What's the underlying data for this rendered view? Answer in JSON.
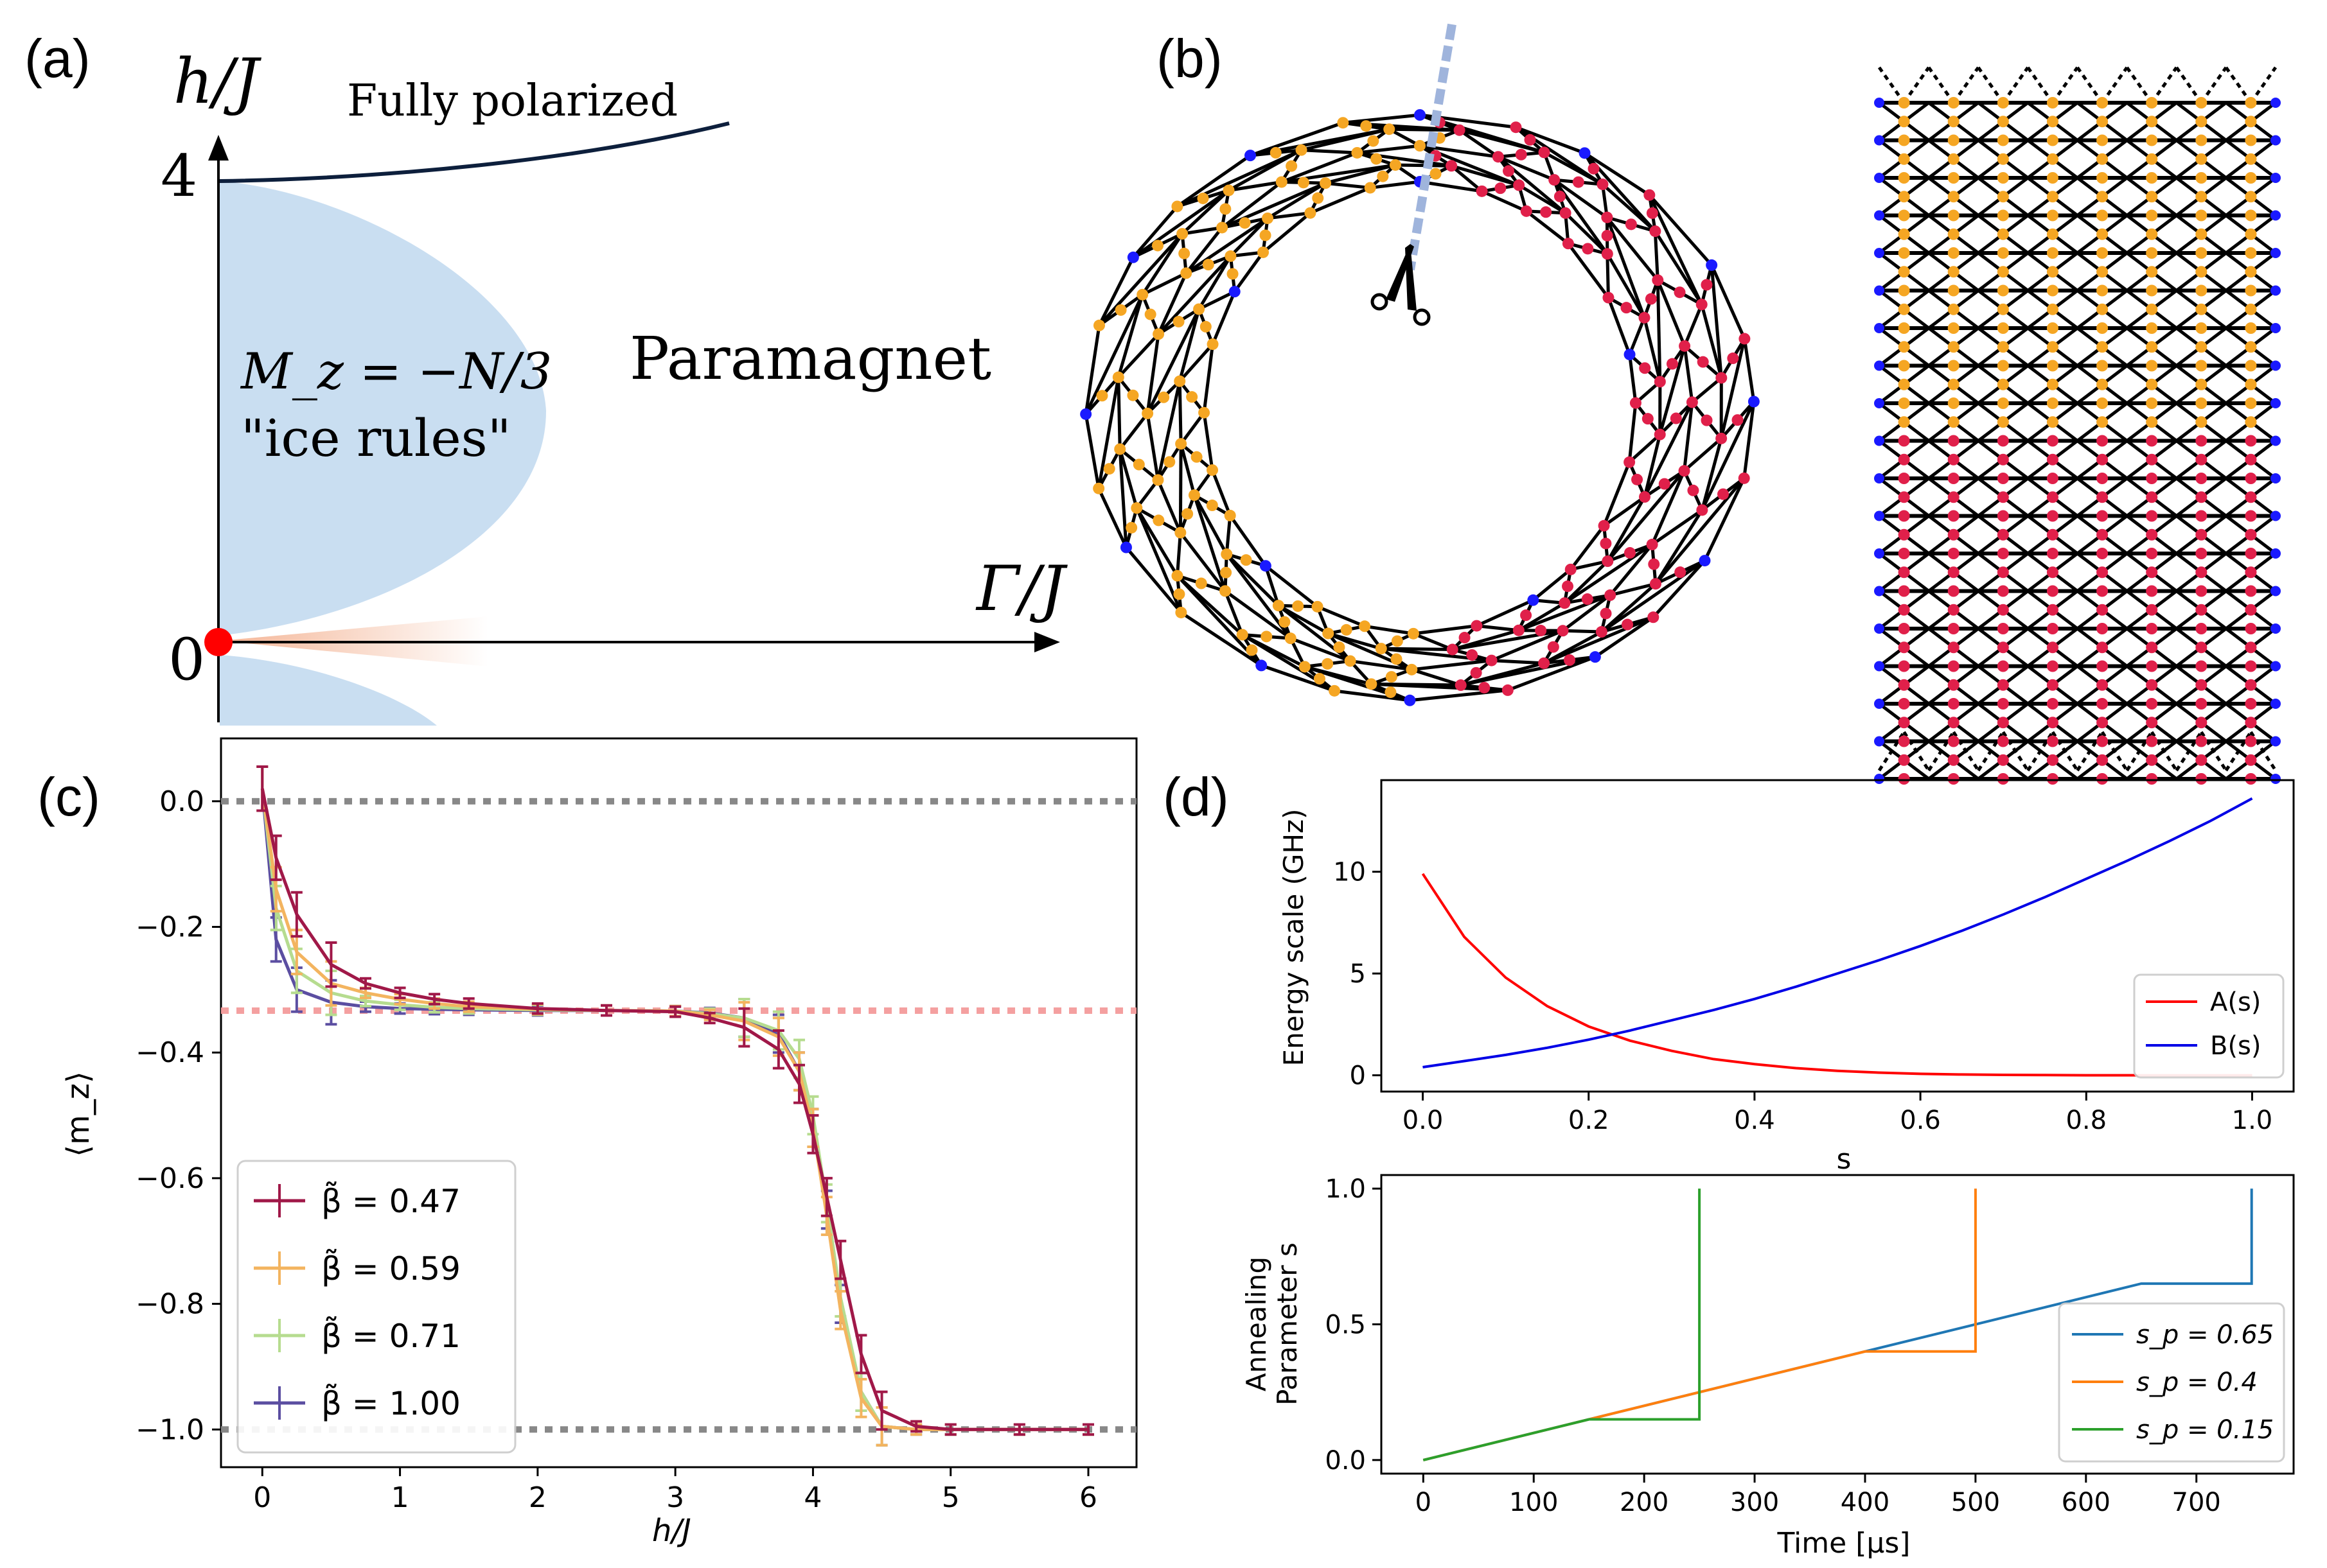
{
  "panel_labels": {
    "a": "(a)",
    "b": "(b)",
    "c": "(c)",
    "d": "(d)"
  },
  "panel_a": {
    "y_axis_label": "h/J",
    "x_axis_label": "Γ/J",
    "tick_4": "4",
    "tick_0": "0",
    "fully_polarized": "Fully polarized",
    "paramagnet": "Paramagnet",
    "ice_magnetization": "M_z = −N/3",
    "ice_rules": "\"ice rules\""
  },
  "colors": {
    "ice_region": "#c6dcf0",
    "critical_point": "#ff0000",
    "boundary": "#0d1f3c",
    "site_orange": "#f5a623",
    "site_red": "#e0204a",
    "site_blue": "#1a1aff",
    "cut_line": "#9fb4dc",
    "A": "#ff0000",
    "B": "#0000e6",
    "sp_065": "#1f77b4",
    "sp_04": "#ff7f0e",
    "sp_015": "#2ca02c",
    "beta_047": "#a01848",
    "beta_059": "#f3b45f",
    "beta_071": "#b6dc8f",
    "beta_100": "#5b4ea1"
  },
  "chart_data": [
    {
      "id": "c",
      "type": "line",
      "xlabel": "h/J",
      "ylabel": "⟨m_z⟩",
      "xlim": [
        -0.3,
        6.35
      ],
      "ylim": [
        -1.06,
        0.1
      ],
      "xticks": [
        "0",
        "1",
        "2",
        "3",
        "4",
        "5",
        "6"
      ],
      "yticks": [
        "0.0",
        "−0.2",
        "−0.4",
        "−0.6",
        "−0.8",
        "−1.0"
      ],
      "reference_lines": [
        0.0,
        -0.3333,
        -1.0
      ],
      "x": [
        0,
        0.1,
        0.25,
        0.5,
        0.75,
        1.0,
        1.25,
        1.5,
        2.0,
        2.5,
        3.0,
        3.25,
        3.5,
        3.75,
        3.9,
        4.0,
        4.1,
        4.2,
        4.35,
        4.5,
        4.75,
        5.0,
        5.5,
        6.0
      ],
      "series": [
        {
          "name": "β̃ = 0.47",
          "values": [
            0.02,
            -0.09,
            -0.18,
            -0.26,
            -0.29,
            -0.305,
            -0.315,
            -0.322,
            -0.33,
            -0.333,
            -0.335,
            -0.345,
            -0.36,
            -0.395,
            -0.45,
            -0.53,
            -0.63,
            -0.73,
            -0.88,
            -0.97,
            -0.995,
            -1.0,
            -1.0,
            -1.0
          ]
        },
        {
          "name": "β̃ = 0.59",
          "values": [
            0.02,
            -0.14,
            -0.24,
            -0.29,
            -0.305,
            -0.315,
            -0.322,
            -0.327,
            -0.331,
            -0.333,
            -0.334,
            -0.34,
            -0.35,
            -0.375,
            -0.43,
            -0.52,
            -0.66,
            -0.81,
            -0.95,
            -0.995,
            -1.0,
            -1.0,
            -1.0,
            -1.0
          ]
        },
        {
          "name": "β̃ = 0.71",
          "values": [
            0.02,
            -0.17,
            -0.27,
            -0.305,
            -0.318,
            -0.324,
            -0.328,
            -0.33,
            -0.332,
            -0.333,
            -0.334,
            -0.338,
            -0.345,
            -0.365,
            -0.41,
            -0.5,
            -0.64,
            -0.79,
            -0.94,
            -0.995,
            -1.0,
            -1.0,
            -1.0,
            -1.0
          ]
        },
        {
          "name": "β̃ = 1.00",
          "values": [
            0.02,
            -0.22,
            -0.3,
            -0.32,
            -0.327,
            -0.33,
            -0.331,
            -0.332,
            -0.333,
            -0.333,
            -0.334,
            -0.337,
            -0.345,
            -0.37,
            -0.43,
            -0.52,
            -0.65,
            -0.8,
            -0.94,
            -0.995,
            -1.0,
            -1.0,
            -1.0,
            -1.0
          ]
        }
      ]
    },
    {
      "id": "d-top",
      "type": "line",
      "xlabel": "s",
      "ylabel": "Energy scale (GHz)",
      "xlim": [
        -0.05,
        1.05
      ],
      "ylim": [
        -0.8,
        14.5
      ],
      "xticks": [
        "0.0",
        "0.2",
        "0.4",
        "0.6",
        "0.8",
        "1.0"
      ],
      "yticks": [
        "0",
        "5",
        "10"
      ],
      "x": [
        0,
        0.05,
        0.1,
        0.15,
        0.2,
        0.25,
        0.3,
        0.35,
        0.4,
        0.45,
        0.5,
        0.55,
        0.6,
        0.65,
        0.7,
        0.75,
        0.8,
        0.85,
        0.9,
        0.95,
        1.0
      ],
      "series": [
        {
          "name": "A(s)",
          "values": [
            9.9,
            6.8,
            4.8,
            3.4,
            2.4,
            1.7,
            1.2,
            0.8,
            0.55,
            0.35,
            0.22,
            0.13,
            0.07,
            0.04,
            0.02,
            0.01,
            0.0,
            0.0,
            0.0,
            0.0,
            0.0
          ]
        },
        {
          "name": "B(s)",
          "values": [
            0.4,
            0.7,
            1.0,
            1.35,
            1.75,
            2.2,
            2.7,
            3.2,
            3.75,
            4.35,
            5.0,
            5.65,
            6.35,
            7.1,
            7.9,
            8.75,
            9.65,
            10.55,
            11.5,
            12.5,
            13.6
          ]
        }
      ]
    },
    {
      "id": "d-bottom",
      "type": "line",
      "xlabel": "Time [μs]",
      "ylabel_line1": "Annealing",
      "ylabel_line2": "Parameter s",
      "xlim": [
        -38,
        788
      ],
      "ylim": [
        -0.05,
        1.05
      ],
      "xticks": [
        "0",
        "100",
        "200",
        "300",
        "400",
        "500",
        "600",
        "700"
      ],
      "yticks": [
        "0.0",
        "0.5",
        "1.0"
      ],
      "series": [
        {
          "name": "s_p = 0.65",
          "points": [
            [
              0,
              0
            ],
            [
              650,
              0.65
            ],
            [
              750,
              0.65
            ],
            [
              750,
              1.0
            ]
          ]
        },
        {
          "name": "s_p = 0.4",
          "points": [
            [
              0,
              0
            ],
            [
              400,
              0.4
            ],
            [
              500,
              0.4
            ],
            [
              500,
              1.0
            ]
          ]
        },
        {
          "name": "s_p = 0.15",
          "points": [
            [
              0,
              0
            ],
            [
              150,
              0.15
            ],
            [
              250,
              0.15
            ],
            [
              250,
              1.0
            ]
          ]
        }
      ]
    }
  ]
}
